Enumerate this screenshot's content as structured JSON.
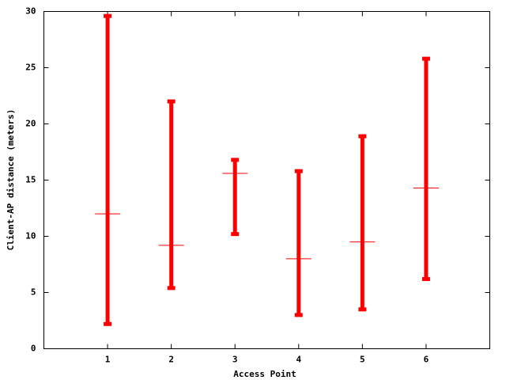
{
  "chart_data": {
    "type": "rangebar",
    "x_label": "Access Point",
    "y_label": "Client-AP distance (meters)",
    "x": [
      1,
      2,
      3,
      4,
      5,
      6
    ],
    "min": [
      2.2,
      5.4,
      10.2,
      3.0,
      3.5,
      6.2
    ],
    "max": [
      29.6,
      22.0,
      16.8,
      15.8,
      18.9,
      25.8
    ],
    "mean": [
      12.0,
      9.2,
      15.6,
      8.0,
      9.5,
      14.3
    ],
    "color": "#ff0000",
    "xlim": [
      0,
      7
    ],
    "xticks": [
      1,
      2,
      3,
      4,
      5,
      6
    ],
    "ylim": [
      0,
      30
    ],
    "yticks": [
      0,
      5,
      10,
      15,
      20,
      25,
      30
    ],
    "grid": false
  }
}
